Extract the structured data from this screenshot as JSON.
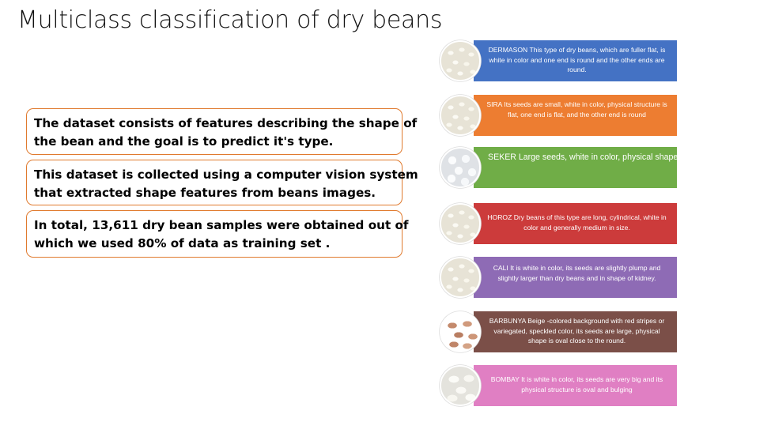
{
  "title": "Multiclass classification of dry beans",
  "info_boxes": [
    [
      "The dataset consists of features describing the shape of",
      "the bean and the goal is to predict it's type."
    ],
    [
      "This dataset is collected using a computer vision system",
      "that extracted shape features from beans images."
    ],
    [
      "In total, 13,611 dry bean samples were obtained out of",
      "which we used 80% of data as training set ."
    ]
  ],
  "beans": [
    {
      "label": "DERMASON This type of dry beans, which are fuller flat, is white in color and one end is round and the other ends are round.",
      "color": "#4472c4",
      "image": "small-white-beans"
    },
    {
      "label": "SIRA Its seeds are small, white in color, physical structure is flat, one end is flat, and the other end is round",
      "color": "#ed7d31",
      "image": "small-white-beans"
    },
    {
      "label": "SEKER  Large seeds, white in color, physical shape is round.",
      "color": "#70ad47",
      "image": "large-round-white-beans"
    },
    {
      "label": "HOROZ Dry beans of this type are long, cylindrical, white in color and generally medium in size.",
      "color": "#cc3b3b",
      "image": "small-white-beans"
    },
    {
      "label": "CALI It is white in color, its seeds are slightly plump and slightly larger than dry beans and in shape of kidney.",
      "color": "#8e6bb5",
      "image": "small-white-beans"
    },
    {
      "label": "BARBUNYA Beige -colored background with red stripes or variegated, speckled color, its seeds are large, physical shape is oval close to the round.",
      "color": "#7b4f48",
      "image": "speckled-beans"
    },
    {
      "label": "BOMBAY It is white in color, its seeds are very big and its physical structure is oval and bulging",
      "color": "#e07fc3",
      "image": "big-white-beans"
    }
  ]
}
